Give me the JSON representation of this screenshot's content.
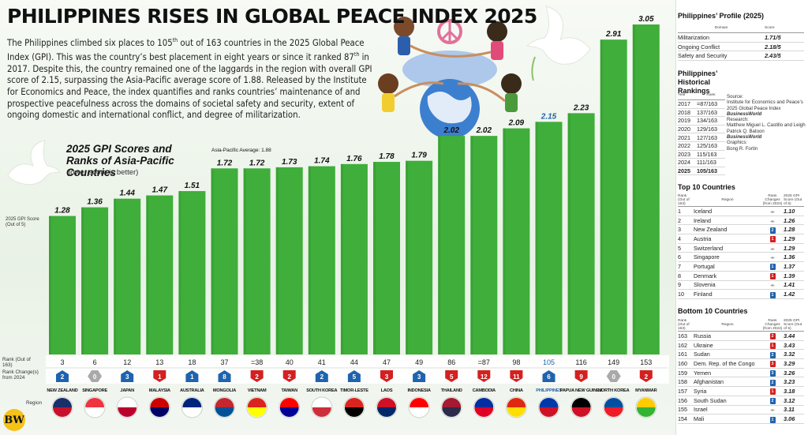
{
  "header": {
    "title": "PHILIPPINES RISES IN GLOBAL PEACE INDEX 2025",
    "intro_parts": [
      "The Philippines climbed six places to 105",
      "th",
      " out of 163 countries in the 2025 Global Peace Index (GPI). This was the country’s best placement in eight years or since it ranked 87",
      "th",
      " in 2017. Despite this, the country remained one of the laggards in the region with overall GPI score of 2.15, surpassing the Asia-Pacific average score of 1.88. Released by the Institute for Economics and Peace, the index quantifies and ranks countries’ maintenance of and prospective peacefulness across the domains of societal safety and security, extent of ongoing domestic and international conflict, and degree of militarization."
    ]
  },
  "chart_data": {
    "type": "bar",
    "title": "2025 GPI Scores and Ranks of Asia-Pacific Countries",
    "subtitle": "(lower score is better)",
    "ylabel": "2025 GPI Score (Out of 5)",
    "average_label": "Asia-Pacific Average: 1.88",
    "average_value": 1.88,
    "ylim": [
      0,
      3.1
    ],
    "highlight_category": "PHILIPPINES",
    "categories": [
      "NEW ZEALAND",
      "SINGAPORE",
      "JAPAN",
      "MALAYSIA",
      "AUSTRALIA",
      "MONGOLIA",
      "VIETNAM",
      "TAIWAN",
      "SOUTH KOREA",
      "TIMOR-LESTE",
      "LAOS",
      "INDONESIA",
      "THAILAND",
      "CAMBODIA",
      "CHINA",
      "PHILIPPINES",
      "PAPUA NEW GUINEA",
      "NORTH KOREA",
      "MYANMAR"
    ],
    "values": [
      1.28,
      1.36,
      1.44,
      1.47,
      1.51,
      1.72,
      1.72,
      1.73,
      1.74,
      1.76,
      1.78,
      1.79,
      2.02,
      2.02,
      2.09,
      2.15,
      2.23,
      2.91,
      3.05
    ],
    "ranks": [
      "3",
      "6",
      "12",
      "13",
      "18",
      "37",
      "=38",
      "40",
      "41",
      "44",
      "47",
      "49",
      "86",
      "=87",
      "98",
      "105",
      "116",
      "149",
      "153"
    ],
    "rank_changes": [
      {
        "dir": "up",
        "value": "2"
      },
      {
        "dir": "nc",
        "value": "0"
      },
      {
        "dir": "up",
        "value": "3"
      },
      {
        "dir": "down",
        "value": "1"
      },
      {
        "dir": "up",
        "value": "1"
      },
      {
        "dir": "up",
        "value": "8"
      },
      {
        "dir": "down",
        "value": "2"
      },
      {
        "dir": "down",
        "value": "2"
      },
      {
        "dir": "up",
        "value": "2"
      },
      {
        "dir": "up",
        "value": "5"
      },
      {
        "dir": "down",
        "value": "3"
      },
      {
        "dir": "up",
        "value": "3"
      },
      {
        "dir": "down",
        "value": "5"
      },
      {
        "dir": "down",
        "value": "12"
      },
      {
        "dir": "down",
        "value": "11"
      },
      {
        "dir": "up",
        "value": "6"
      },
      {
        "dir": "down",
        "value": "9"
      },
      {
        "dir": "nc",
        "value": "0"
      },
      {
        "dir": "down",
        "value": "2"
      }
    ],
    "row_labels": {
      "rank": "Rank (Out of 163)",
      "change": "Rank Change(s) from 2024",
      "region": "Region"
    }
  },
  "colors": {
    "bar": "#3fae3a",
    "bar_dark": "#2f8f2b",
    "up": "#1f63ae",
    "down": "#d42020",
    "nochange": "#a9a9a9",
    "highlight_text": "#1f63ae"
  },
  "profile": {
    "title": "Philippines’ Profile (2025)",
    "headers": [
      "Domain",
      "Score"
    ],
    "rows": [
      {
        "domain": "Militarization",
        "score": "1.71/5"
      },
      {
        "domain": "Ongoing Conflict",
        "score": "2.18/5"
      },
      {
        "domain": "Safety and Security",
        "score": "2.43/5"
      }
    ]
  },
  "history": {
    "title": "Philippines’ Historical Rankings",
    "headers": [
      "Year",
      "Rank"
    ],
    "rows": [
      {
        "year": "2017",
        "rank": "=87/163"
      },
      {
        "year": "2018",
        "rank": "137/163"
      },
      {
        "year": "2019",
        "rank": "134/163"
      },
      {
        "year": "2020",
        "rank": "129/163"
      },
      {
        "year": "2021",
        "rank": "127/163"
      },
      {
        "year": "2022",
        "rank": "125/163"
      },
      {
        "year": "2023",
        "rank": "115/163"
      },
      {
        "year": "2024",
        "rank": "111/163"
      },
      {
        "year": "2025",
        "rank": "105/163"
      }
    ],
    "source_label": "Source:",
    "source_text": "Institute for Economics and Peace’s 2025 Global Peace Index",
    "research_brand": "BusinessWorld",
    "research_label": "Research:",
    "research_names": "Matthew Miguel L. Castillo and Leigh Patrick Q. Batoon",
    "graphics_brand": "BusinessWorld",
    "graphics_label": "Graphics:",
    "graphics_names": "Bong R. Fortin"
  },
  "top10": {
    "title": "Top 10 Countries",
    "headers": [
      "Rank (Out of 163)",
      "Region",
      "Rank Changes (from 2024)",
      "2025 GPI Score (Out of 5)"
    ],
    "rows": [
      {
        "rank": "1",
        "region": "Iceland",
        "dir": "nc",
        "chg": "",
        "score": "1.10"
      },
      {
        "rank": "2",
        "region": "Ireland",
        "dir": "nc",
        "chg": "",
        "score": "1.26"
      },
      {
        "rank": "3",
        "region": "New Zealand",
        "dir": "up",
        "chg": "2",
        "score": "1.28"
      },
      {
        "rank": "4",
        "region": "Austria",
        "dir": "down",
        "chg": "1",
        "score": "1.29"
      },
      {
        "rank": "5",
        "region": "Switzerland",
        "dir": "nc",
        "chg": "",
        "score": "1.29"
      },
      {
        "rank": "6",
        "region": "Singapore",
        "dir": "nc",
        "chg": "",
        "score": "1.36"
      },
      {
        "rank": "7",
        "region": "Portugal",
        "dir": "up",
        "chg": "1",
        "score": "1.37"
      },
      {
        "rank": "8",
        "region": "Denmark",
        "dir": "down",
        "chg": "1",
        "score": "1.39"
      },
      {
        "rank": "9",
        "region": "Slovenia",
        "dir": "nc",
        "chg": "",
        "score": "1.41"
      },
      {
        "rank": "10",
        "region": "Finland",
        "dir": "up",
        "chg": "1",
        "score": "1.42"
      }
    ]
  },
  "bottom10": {
    "title": "Bottom 10 Countries",
    "headers": [
      "Rank (Out of 163)",
      "Region",
      "Rank Changes (from 2024)",
      "2025 GPI Score (Out of 5)"
    ],
    "rows": [
      {
        "rank": "163",
        "region": "Russia",
        "dir": "down",
        "chg": "2",
        "score": "3.44"
      },
      {
        "rank": "162",
        "region": "Ukraine",
        "dir": "down",
        "chg": "1",
        "score": "3.43"
      },
      {
        "rank": "161",
        "region": "Sudan",
        "dir": "up",
        "chg": "2",
        "score": "3.32"
      },
      {
        "rank": "160",
        "region": "Dem. Rep. of the Congo",
        "dir": "down",
        "chg": "3",
        "score": "3.29"
      },
      {
        "rank": "159",
        "region": "Yemen",
        "dir": "up",
        "chg": "3",
        "score": "3.26"
      },
      {
        "rank": "158",
        "region": "Afghanistan",
        "dir": "up",
        "chg": "2",
        "score": "3.23"
      },
      {
        "rank": "157",
        "region": "Syria",
        "dir": "down",
        "chg": "1",
        "score": "3.18"
      },
      {
        "rank": "156",
        "region": "South Sudan",
        "dir": "up",
        "chg": "2",
        "score": "3.12"
      },
      {
        "rank": "155",
        "region": "Israel",
        "dir": "nc",
        "chg": "",
        "score": "3.11"
      },
      {
        "rank": "154",
        "region": "Mali",
        "dir": "up",
        "chg": "1",
        "score": "3.06"
      }
    ]
  },
  "logo": {
    "text": "BW"
  }
}
